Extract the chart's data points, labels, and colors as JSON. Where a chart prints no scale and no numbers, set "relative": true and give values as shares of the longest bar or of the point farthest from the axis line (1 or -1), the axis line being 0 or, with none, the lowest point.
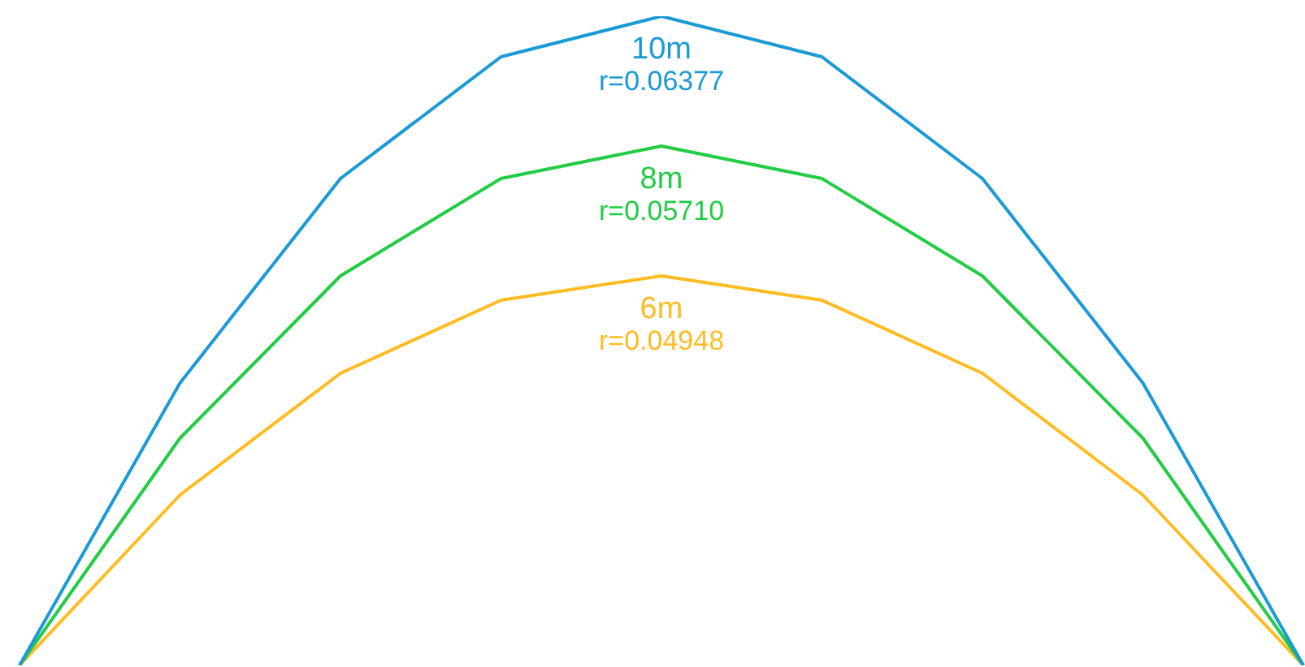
{
  "chart_data": {
    "type": "line",
    "relative": true,
    "categories": [
      null,
      null,
      null,
      null,
      null,
      null,
      null,
      null,
      null
    ],
    "series": [
      {
        "name": "10m",
        "color": "#1a9ad6",
        "values": [
          0,
          0.435,
          0.75,
          0.9375,
          1,
          0.9375,
          0.75,
          0.435,
          0
        ]
      },
      {
        "name": "8m",
        "color": "#22cc44",
        "values": [
          0,
          0.35,
          0.6,
          0.75,
          0.8,
          0.75,
          0.6,
          0.35,
          0
        ]
      },
      {
        "name": "6m",
        "color": "#ffbb22",
        "values": [
          0,
          0.2625,
          0.45,
          0.5625,
          0.6,
          0.5625,
          0.45,
          0.2625,
          0
        ]
      }
    ],
    "annotations": [
      "r=0.06377",
      "r=0.05710",
      "r=0.04948"
    ],
    "legend": false,
    "marker": "none",
    "line_style": "solid"
  }
}
